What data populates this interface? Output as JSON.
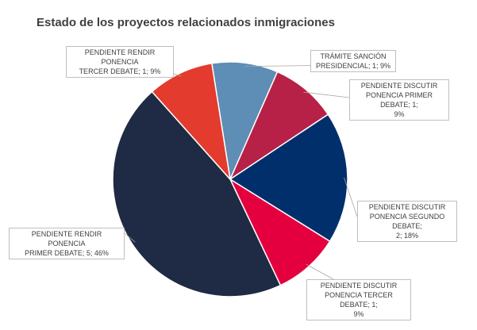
{
  "chart_data": {
    "type": "pie",
    "title": "Estado de los proyectos relacionados inmigraciones",
    "slices": [
      {
        "label": "TRÁMITE SANCIÓN PRESIDENCIAL",
        "value": 1,
        "percent": "9%",
        "color": "#5E8DB5",
        "lines": [
          "TRÁMITE SANCIÓN",
          "PRESIDENCIAL; 1; 9%"
        ]
      },
      {
        "label": "PENDIENTE DISCUTIR PONENCIA PRIMER DEBATE",
        "value": 1,
        "percent": "9%",
        "color": "#B82147",
        "lines": [
          "PENDIENTE DISCUTIR",
          "PONENCIA PRIMER DEBATE; 1;",
          "9%"
        ]
      },
      {
        "label": "PENDIENTE DISCUTIR PONENCIA SEGUNDO DEBATE",
        "value": 2,
        "percent": "18%",
        "color": "#002F6C",
        "lines": [
          "PENDIENTE DISCUTIR",
          "PONENCIA SEGUNDO DEBATE;",
          "2; 18%"
        ]
      },
      {
        "label": "PENDIENTE DISCUTIR PONENCIA TERCER DEBATE",
        "value": 1,
        "percent": "9%",
        "color": "#E4003F",
        "lines": [
          "PENDIENTE DISCUTIR",
          "PONENCIA TERCER DEBATE; 1;",
          "9%"
        ]
      },
      {
        "label": "PENDIENTE RENDIR PONENCIA PRIMER DEBATE",
        "value": 5,
        "percent": "46%",
        "color": "#1F2A44",
        "lines": [
          "PENDIENTE RENDIR PONENCIA",
          "PRIMER DEBATE; 5; 46%"
        ]
      },
      {
        "label": "PENDIENTE RENDIR PONENCIA TERCER DEBATE",
        "value": 1,
        "percent": "9%",
        "color": "#E33B2E",
        "lines": [
          "PENDIENTE RENDIR PONENCIA",
          "TERCER DEBATE; 1; 9%"
        ]
      }
    ]
  }
}
